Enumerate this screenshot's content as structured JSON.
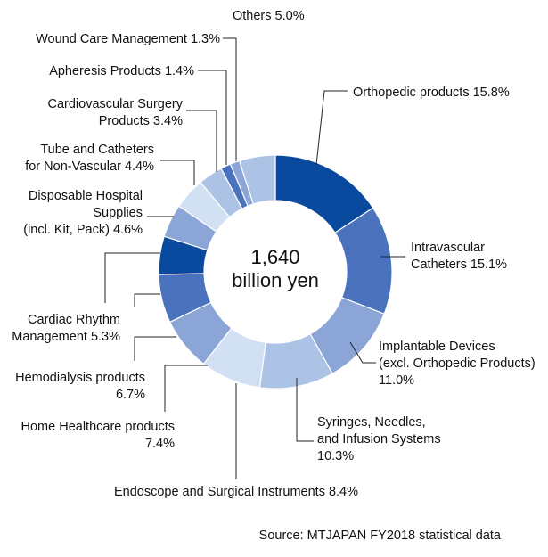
{
  "chart_data": {
    "type": "pie",
    "donut": true,
    "center_label": [
      "1,640",
      "billion yen"
    ],
    "source": "Source: MTJAPAN FY2018 statistical data",
    "slices": [
      {
        "key": "orthopedic",
        "value": 15.8,
        "color": "#0a4a9e",
        "label": [
          "Orthopedic  products 15.8%"
        ]
      },
      {
        "key": "intravascular",
        "value": 15.1,
        "color": "#4a72bd",
        "label": [
          "Intravascular",
          "Catheters 15.1%"
        ]
      },
      {
        "key": "implantable",
        "value": 11.0,
        "color": "#8aa5d6",
        "label": [
          "Implantable Devices",
          "(excl. Orthopedic Products)",
          "11.0%"
        ]
      },
      {
        "key": "syringes",
        "value": 10.3,
        "color": "#adc3e6",
        "label": [
          "Syringes, Needles,",
          "and Infusion Systems",
          "10.3%"
        ]
      },
      {
        "key": "endoscope",
        "value": 8.4,
        "color": "#d2e0f3",
        "label": [
          "Endoscope and Surgical Instruments 8.4%"
        ]
      },
      {
        "key": "home-healthcare",
        "value": 7.4,
        "color": "#8aa5d6",
        "label": [
          "Home Healthcare products",
          "7.4%"
        ]
      },
      {
        "key": "hemodialysis",
        "value": 6.7,
        "color": "#4a72bd",
        "label": [
          "Hemodialysis products",
          "6.7%"
        ]
      },
      {
        "key": "cardiac-rhythm",
        "value": 5.3,
        "color": "#0a4a9e",
        "label": [
          "Cardiac Rhythm",
          "Management 5.3%"
        ]
      },
      {
        "key": "disposable-hospital",
        "value": 4.6,
        "color": "#8aa5d6",
        "label": [
          "Disposable Hospital",
          "Supplies",
          "(incl. Kit, Pack) 4.6%"
        ]
      },
      {
        "key": "tube-catheters",
        "value": 4.4,
        "color": "#d2e0f3",
        "label": [
          "Tube and Catheters",
          "for Non-Vascular 4.4%"
        ]
      },
      {
        "key": "cardiovascular-surgery",
        "value": 3.4,
        "color": "#adc3e6",
        "label": [
          "Cardiovascular Surgery",
          "Products 3.4%"
        ]
      },
      {
        "key": "apheresis",
        "value": 1.4,
        "color": "#4a72bd",
        "label": [
          "Apheresis Products 1.4%"
        ]
      },
      {
        "key": "wound-care",
        "value": 1.3,
        "color": "#8aa5d6",
        "label": [
          "Wound Care Management 1.3%"
        ]
      },
      {
        "key": "others",
        "value": 5.0,
        "color": "#adc3e6",
        "label": [
          "Others 5.0%"
        ]
      }
    ]
  }
}
